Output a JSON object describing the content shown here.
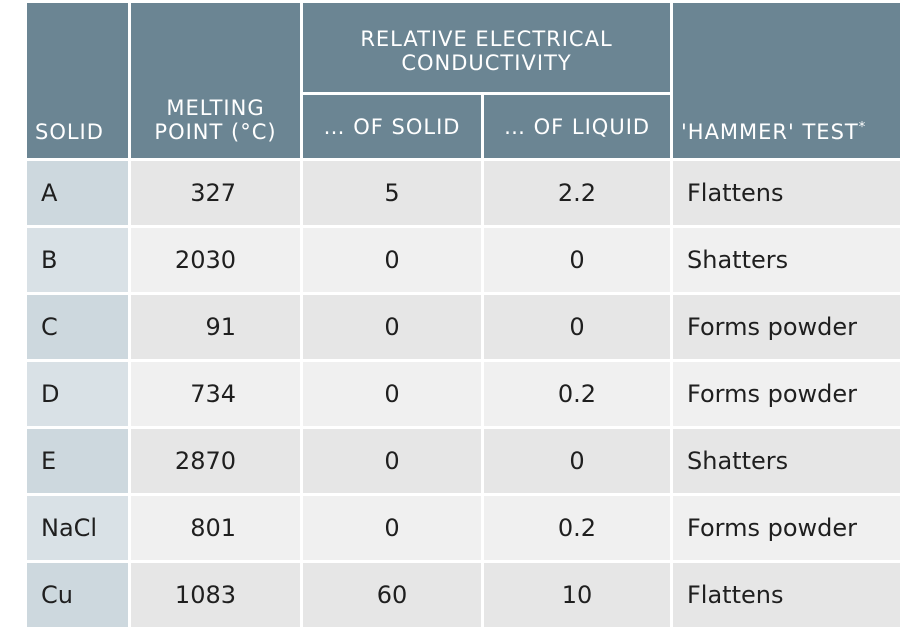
{
  "header": {
    "solid": "SOLID",
    "melting_point": "MELTING POINT (°C)",
    "conductivity_group": "RELATIVE ELECTRICAL CONDUCTIVITY",
    "of_solid": "… OF SOLID",
    "of_liquid": "… OF LIQUID",
    "hammer_test": "'HAMMER' TEST",
    "hammer_footnote_mark": "*"
  },
  "rows": [
    {
      "solid": "A",
      "melting_point": "327",
      "cond_solid": "5",
      "cond_liquid": "2.2",
      "hammer": "Flattens"
    },
    {
      "solid": "B",
      "melting_point": "2030",
      "cond_solid": "0",
      "cond_liquid": "0",
      "hammer": "Shatters"
    },
    {
      "solid": "C",
      "melting_point": "91",
      "cond_solid": "0",
      "cond_liquid": "0",
      "hammer": "Forms powder"
    },
    {
      "solid": "D",
      "melting_point": "734",
      "cond_solid": "0",
      "cond_liquid": "0.2",
      "hammer": "Forms powder"
    },
    {
      "solid": "E",
      "melting_point": "2870",
      "cond_solid": "0",
      "cond_liquid": "0",
      "hammer": "Shatters"
    },
    {
      "solid": "NaCl",
      "melting_point": "801",
      "cond_solid": "0",
      "cond_liquid": "0.2",
      "hammer": "Forms powder"
    },
    {
      "solid": "Cu",
      "melting_point": "1083",
      "cond_solid": "60",
      "cond_liquid": "10",
      "hammer": "Flattens"
    }
  ],
  "colors": {
    "header_bg": "#6b8593",
    "solid_col_bg": "#cdd8de",
    "cell_bg": "#e6e6e6"
  }
}
